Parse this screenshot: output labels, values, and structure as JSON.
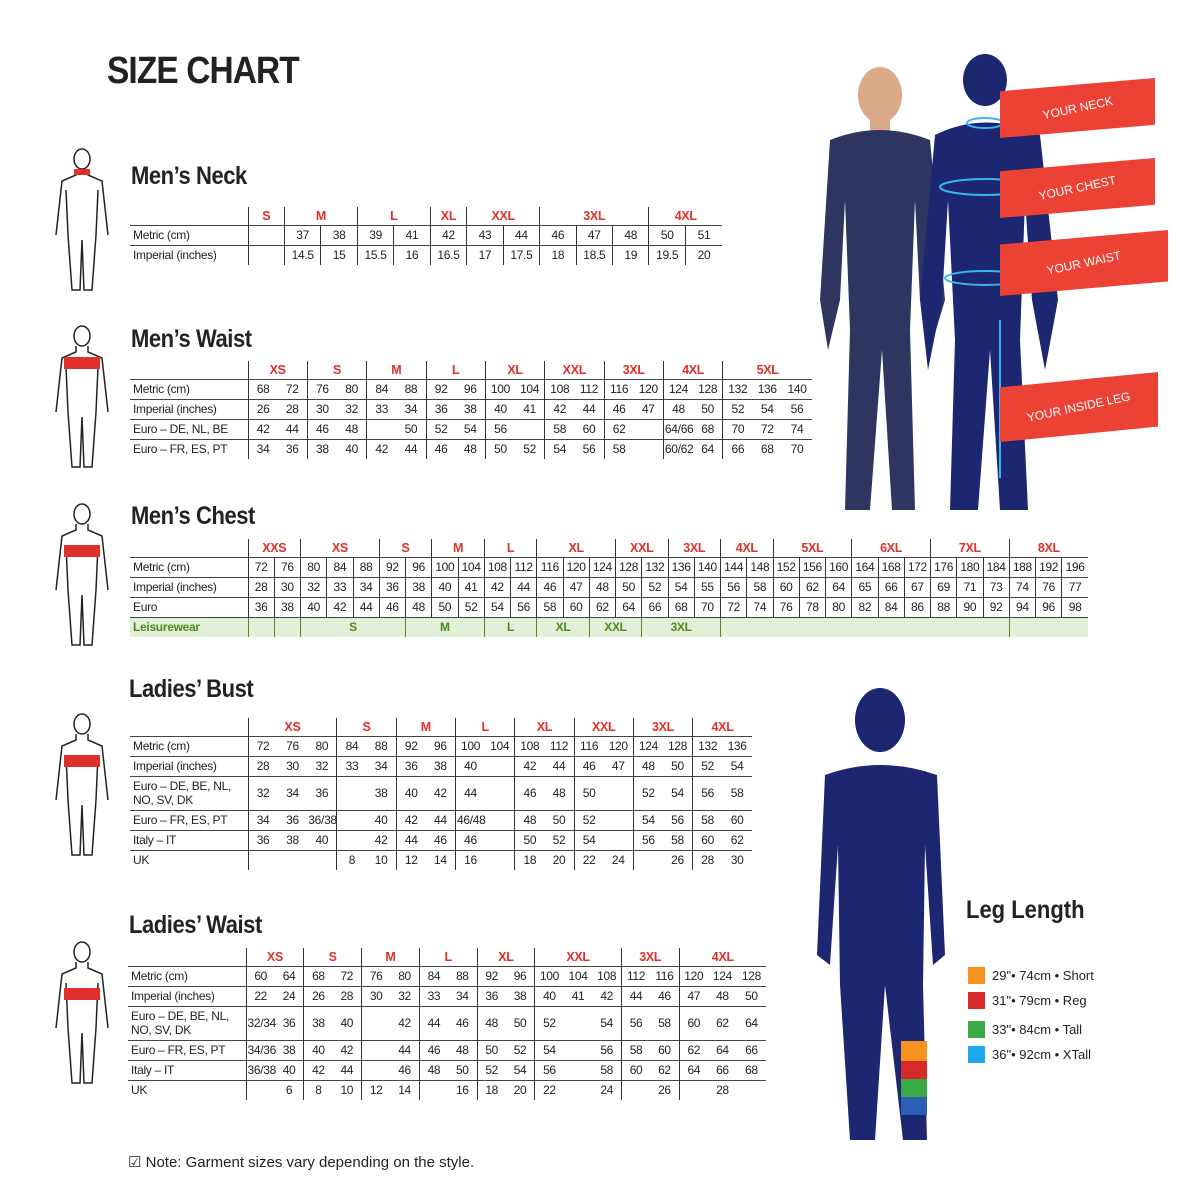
{
  "title": "SIZE CHART",
  "colors": {
    "size_label": "#e0302a",
    "red_label": "#ec4236",
    "leisure_bg": "#e2efd9",
    "leisure_text": "#4f8a1f",
    "figure": "#25285e"
  },
  "tables": [
    {
      "title": "Men’s Neck",
      "groups": [
        [
          "S",
          1
        ],
        [
          "M",
          2
        ],
        [
          "L",
          2
        ],
        [
          "XL",
          1
        ],
        [
          "XXL",
          2
        ],
        [
          "3XL",
          3
        ],
        [
          "4XL",
          2
        ]
      ],
      "rows": [
        {
          "label": "Metric (cm)",
          "cells": [
            "",
            "37",
            "38",
            "39",
            "41",
            "42",
            "43",
            "44",
            "46",
            "47",
            "48",
            "50",
            "51"
          ]
        },
        {
          "label": "Imperial (inches)",
          "cells": [
            "",
            "14.5",
            "15",
            "15.5",
            "16",
            "16.5",
            "17",
            "17.5",
            "18",
            "18.5",
            "19",
            "19.5",
            "20"
          ]
        }
      ]
    },
    {
      "title": "Men’s Waist",
      "groups": [
        [
          "XS",
          2
        ],
        [
          "S",
          2
        ],
        [
          "M",
          2
        ],
        [
          "L",
          2
        ],
        [
          "XL",
          2
        ],
        [
          "XXL",
          2
        ],
        [
          "3XL",
          2
        ],
        [
          "4XL",
          2
        ],
        [
          "5XL",
          3
        ]
      ],
      "rows": [
        {
          "label": "Metric (cm)",
          "cells": [
            "68",
            "72",
            "76",
            "80",
            "84",
            "88",
            "92",
            "96",
            "100",
            "104",
            "108",
            "112",
            "116",
            "120",
            "124",
            "128",
            "132",
            "136",
            "140"
          ]
        },
        {
          "label": "Imperial (inches)",
          "cells": [
            "26",
            "28",
            "30",
            "32",
            "33",
            "34",
            "36",
            "38",
            "40",
            "41",
            "42",
            "44",
            "46",
            "47",
            "48",
            "50",
            "52",
            "54",
            "56"
          ]
        },
        {
          "label": "Euro – DE, NL, BE",
          "cells": [
            "42",
            "44",
            "46",
            "48",
            "",
            "50",
            "52",
            "54",
            "56",
            "",
            "58",
            "60",
            "62",
            "",
            "64/66",
            "68",
            "70",
            "72",
            "74"
          ]
        },
        {
          "label": "Euro – FR, ES, PT",
          "cells": [
            "34",
            "36",
            "38",
            "40",
            "42",
            "44",
            "46",
            "48",
            "50",
            "52",
            "54",
            "56",
            "58",
            "",
            "60/62",
            "64",
            "66",
            "68",
            "70"
          ]
        }
      ]
    },
    {
      "title": "Men’s Chest",
      "groups": [
        [
          "XXS",
          2
        ],
        [
          "XS",
          3
        ],
        [
          "S",
          2
        ],
        [
          "M",
          2
        ],
        [
          "L",
          2
        ],
        [
          "XL",
          3
        ],
        [
          "XXL",
          2
        ],
        [
          "3XL",
          2
        ],
        [
          "4XL",
          2
        ],
        [
          "5XL",
          3
        ],
        [
          "6XL",
          3
        ],
        [
          "7XL",
          3
        ],
        [
          "8XL",
          3
        ]
      ],
      "rows": [
        {
          "label": "Metric (cm)",
          "cells": [
            "72",
            "76",
            "80",
            "84",
            "88",
            "92",
            "96",
            "100",
            "104",
            "108",
            "112",
            "116",
            "120",
            "124",
            "128",
            "132",
            "136",
            "140",
            "144",
            "148",
            "152",
            "156",
            "160",
            "164",
            "168",
            "172",
            "176",
            "180",
            "184",
            "188",
            "192",
            "196"
          ]
        },
        {
          "label": "Imperial (inches)",
          "cells": [
            "28",
            "30",
            "32",
            "33",
            "34",
            "36",
            "38",
            "40",
            "41",
            "42",
            "44",
            "46",
            "47",
            "48",
            "50",
            "52",
            "54",
            "55",
            "56",
            "58",
            "60",
            "62",
            "64",
            "65",
            "66",
            "67",
            "69",
            "71",
            "73",
            "74",
            "76",
            "77"
          ]
        },
        {
          "label": "Euro",
          "cells": [
            "36",
            "38",
            "40",
            "42",
            "44",
            "46",
            "48",
            "50",
            "52",
            "54",
            "56",
            "58",
            "60",
            "62",
            "64",
            "66",
            "68",
            "70",
            "72",
            "74",
            "76",
            "78",
            "80",
            "82",
            "84",
            "86",
            "88",
            "90",
            "92",
            "94",
            "96",
            "98"
          ]
        }
      ],
      "leisure": {
        "label": "Leisurewear",
        "cells": [
          [
            "",
            1
          ],
          [
            "",
            1
          ],
          [
            "S",
            4
          ],
          [
            "M",
            3
          ],
          [
            "L",
            2
          ],
          [
            "XL",
            2
          ],
          [
            "XXL",
            2
          ],
          [
            "3XL",
            3
          ],
          [
            "",
            11
          ],
          [
            "",
            3
          ]
        ]
      }
    },
    {
      "title": "Ladies’ Bust",
      "groups": [
        [
          "XS",
          3
        ],
        [
          "S",
          2
        ],
        [
          "M",
          2
        ],
        [
          "L",
          2
        ],
        [
          "XL",
          2
        ],
        [
          "XXL",
          2
        ],
        [
          "3XL",
          2
        ],
        [
          "4XL",
          2
        ]
      ],
      "rows": [
        {
          "label": "Metric (cm)",
          "cells": [
            "72",
            "76",
            "80",
            "84",
            "88",
            "92",
            "96",
            "100",
            "104",
            "108",
            "112",
            "116",
            "120",
            "124",
            "128",
            "132",
            "136"
          ]
        },
        {
          "label": "Imperial (inches)",
          "cells": [
            "28",
            "30",
            "32",
            "33",
            "34",
            "36",
            "38",
            "40",
            "",
            "42",
            "44",
            "46",
            "47",
            "48",
            "50",
            "52",
            "54"
          ]
        },
        {
          "label": "Euro –  DE, BE, NL, NO, SV, DK",
          "cells": [
            "32",
            "34",
            "36",
            "",
            "38",
            "40",
            "42",
            "44",
            "",
            "46",
            "48",
            "50",
            "",
            "52",
            "54",
            "56",
            "58"
          ],
          "tall": true
        },
        {
          "label": "Euro – FR, ES, PT",
          "cells": [
            "34",
            "36",
            "36/38",
            "",
            "40",
            "42",
            "44",
            "46/48",
            "",
            "48",
            "50",
            "52",
            "",
            "54",
            "56",
            "58",
            "60"
          ]
        },
        {
          "label": "Italy – IT",
          "cells": [
            "36",
            "38",
            "40",
            "",
            "42",
            "44",
            "46",
            "46",
            "",
            "50",
            "52",
            "54",
            "",
            "56",
            "58",
            "60",
            "62"
          ]
        },
        {
          "label": "UK",
          "cells": [
            "",
            "",
            "",
            "8",
            "10",
            "12",
            "14",
            "16",
            "",
            "18",
            "20",
            "22",
            "24",
            "",
            "26",
            "28",
            "30"
          ]
        }
      ]
    },
    {
      "title": "Ladies’ Waist",
      "groups": [
        [
          "XS",
          2
        ],
        [
          "S",
          2
        ],
        [
          "M",
          2
        ],
        [
          "L",
          2
        ],
        [
          "XL",
          2
        ],
        [
          "XXL",
          3
        ],
        [
          "3XL",
          2
        ],
        [
          "4XL",
          3
        ]
      ],
      "rows": [
        {
          "label": "Metric (cm)",
          "cells": [
            "60",
            "64",
            "68",
            "72",
            "76",
            "80",
            "84",
            "88",
            "92",
            "96",
            "100",
            "104",
            "108",
            "112",
            "116",
            "120",
            "124",
            "128"
          ]
        },
        {
          "label": "Imperial (inches)",
          "cells": [
            "22",
            "24",
            "26",
            "28",
            "30",
            "32",
            "33",
            "34",
            "36",
            "38",
            "40",
            "41",
            "42",
            "44",
            "46",
            "47",
            "48",
            "50"
          ]
        },
        {
          "label": "Euro – DE, BE, NL, NO, SV, DK",
          "cells": [
            "32/34",
            "36",
            "38",
            "40",
            "",
            "42",
            "44",
            "46",
            "48",
            "50",
            "52",
            "",
            "54",
            "56",
            "58",
            "60",
            "62",
            "64"
          ],
          "tall": true
        },
        {
          "label": "Euro – FR, ES, PT",
          "cells": [
            "34/36",
            "38",
            "40",
            "42",
            "",
            "44",
            "46",
            "48",
            "50",
            "52",
            "54",
            "",
            "56",
            "58",
            "60",
            "62",
            "64",
            "66"
          ]
        },
        {
          "label": "Italy – IT",
          "cells": [
            "36/38",
            "40",
            "42",
            "44",
            "",
            "46",
            "48",
            "50",
            "52",
            "54",
            "56",
            "",
            "58",
            "60",
            "62",
            "64",
            "66",
            "68"
          ]
        },
        {
          "label": "UK",
          "cells": [
            "",
            "6",
            "8",
            "10",
            "12",
            "14",
            "",
            "16",
            "18",
            "20",
            "22",
            "",
            "24",
            "",
            "26",
            "",
            "28",
            ""
          ],
          "noline": true
        }
      ]
    }
  ],
  "measure_labels": [
    "YOUR NECK",
    "YOUR CHEST",
    "YOUR WAIST",
    "YOUR INSIDE LEG"
  ],
  "leg_length": {
    "title": "Leg Length",
    "items": [
      {
        "text": "29\"• 74cm • Short",
        "color": "#f7931e"
      },
      {
        "text": "31\"• 79cm • Reg",
        "color": "#d62a2a"
      },
      {
        "text": "33\"• 84cm • Tall",
        "color": "#3aaa47"
      },
      {
        "text": "36\"• 92cm • XTall",
        "color": "#1ea6ee"
      }
    ]
  },
  "note": "☑ Note: Garment sizes vary depending on the style."
}
